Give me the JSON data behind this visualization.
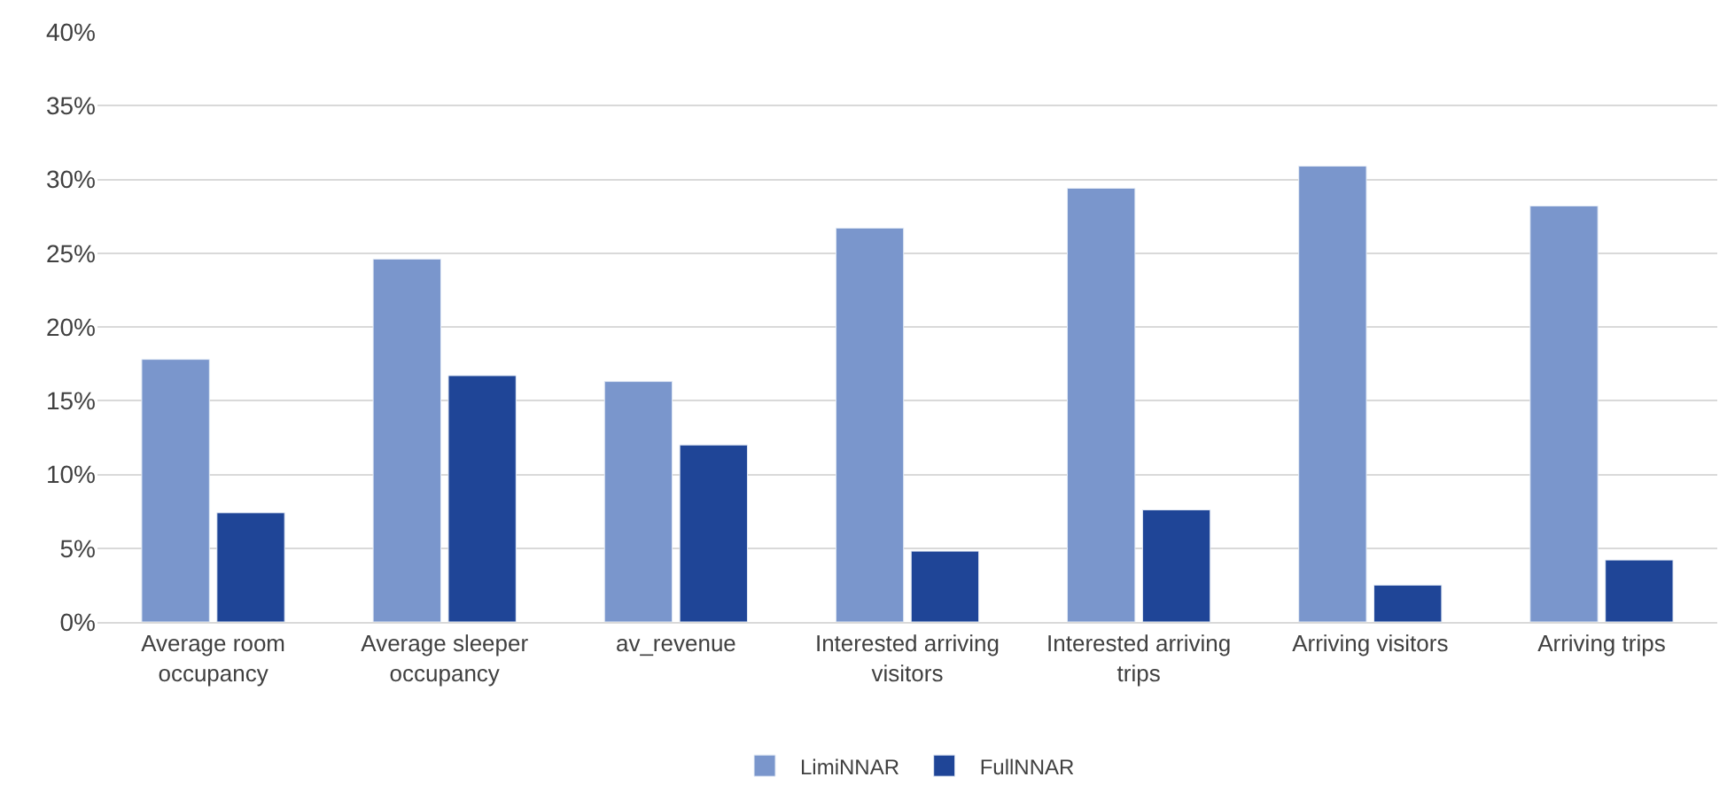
{
  "chart_data": {
    "type": "bar",
    "categories": [
      "Average room occupancy",
      "Average sleeper occupancy",
      "av_revenue",
      "Interested arriving visitors",
      "Interested arriving trips",
      "Arriving visitors",
      "Arriving trips"
    ],
    "series": [
      {
        "name": "LimiNNAR",
        "color": "#7a96cc",
        "values": [
          17.8,
          24.6,
          16.3,
          26.7,
          29.4,
          30.9,
          28.2
        ]
      },
      {
        "name": "FullNNAR",
        "color": "#1f4597",
        "values": [
          7.4,
          16.7,
          12.0,
          4.8,
          7.6,
          2.5,
          4.2
        ]
      }
    ],
    "ylim": [
      0,
      40
    ],
    "yticks": [
      {
        "value": 0,
        "label": "0%"
      },
      {
        "value": 5,
        "label": "5%"
      },
      {
        "value": 10,
        "label": "10%"
      },
      {
        "value": 15,
        "label": "15%"
      },
      {
        "value": 20,
        "label": "20%"
      },
      {
        "value": 25,
        "label": "25%"
      },
      {
        "value": 30,
        "label": "30%"
      },
      {
        "value": 35,
        "label": "35%"
      },
      {
        "value": 40,
        "label": "40%"
      }
    ],
    "grid": "y",
    "legend": "bottom"
  }
}
